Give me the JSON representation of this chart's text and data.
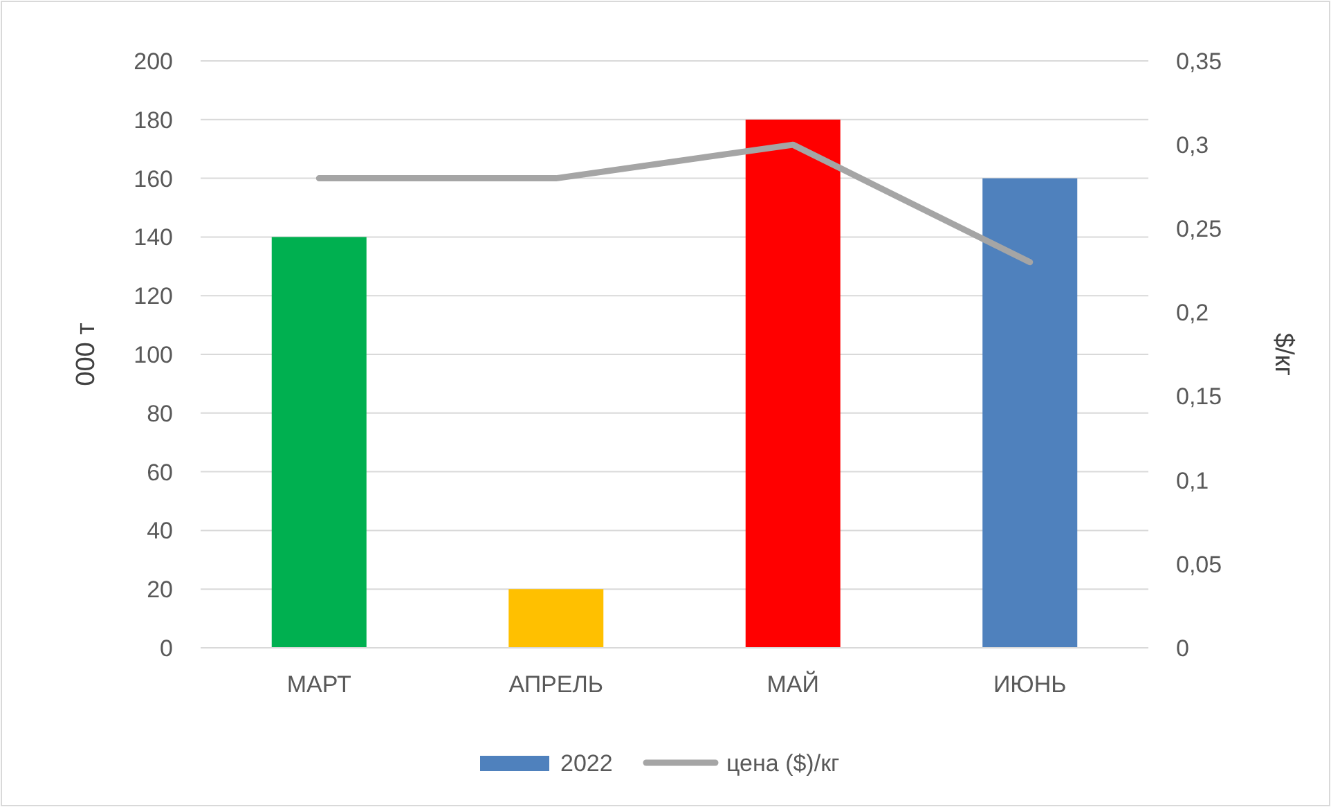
{
  "chart_data": {
    "type": "bar",
    "categories": [
      "МАРТ",
      "АПРЕЛЬ",
      "МАЙ",
      "ИЮНЬ"
    ],
    "series": [
      {
        "name": "2022",
        "color": "#4f81bd",
        "colors": [
          "#00b050",
          "#ffc000",
          "#ff0000",
          "#4f81bd"
        ],
        "values": [
          140,
          20,
          180,
          160
        ]
      },
      {
        "name": "цена ($)/кг",
        "type": "line",
        "axis": "y2",
        "color": "#a5a5a5",
        "values": [
          0.28,
          0.28,
          0.3,
          0.23
        ]
      }
    ],
    "ylabel": "000 т",
    "y2label": "$/кг",
    "ylim": [
      0,
      200
    ],
    "yticks": [
      0,
      20,
      40,
      60,
      80,
      100,
      120,
      140,
      160,
      180,
      200
    ],
    "y2lim": [
      0,
      0.35
    ],
    "y2ticks": [
      0,
      {
        "value": 0.05,
        "label": "0,05"
      },
      {
        "value": 0.1,
        "label": "0,1"
      },
      {
        "value": 0.15,
        "label": "0,15"
      },
      {
        "value": 0.2,
        "label": "0,2"
      },
      {
        "value": 0.25,
        "label": "0,25"
      },
      {
        "value": 0.3,
        "label": "0,3"
      },
      {
        "value": 0.35,
        "label": "0,35"
      }
    ],
    "grid": "y",
    "legend": "bottom",
    "marker": "none",
    "line_style": "solid"
  }
}
